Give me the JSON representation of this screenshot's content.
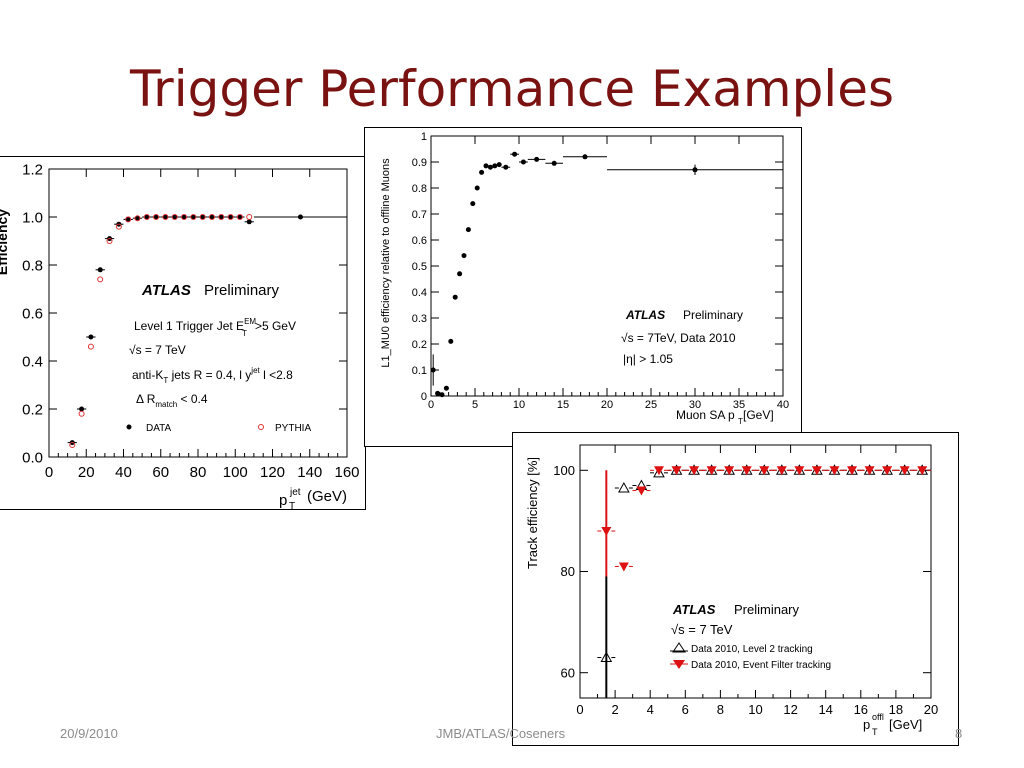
{
  "slide": {
    "title": "Trigger Performance Examples",
    "footer_date": "20/9/2010",
    "footer_center": "JMB/ATLAS/Coseners",
    "footer_page": "8",
    "title_color": "#7a1212"
  },
  "chart_data": [
    {
      "type": "scatter",
      "xlim": [
        0,
        160
      ],
      "ylim": [
        0,
        1.2
      ],
      "xticks": [
        "0",
        "20",
        "40",
        "60",
        "80",
        "100",
        "120",
        "140",
        "160"
      ],
      "yticks": [
        "0.0",
        "0.2",
        "0.4",
        "0.6",
        "0.8",
        "1.0",
        "1.2"
      ],
      "ylabel": "Efficiency",
      "xlabel_main": "p",
      "xlabel_sup": "jet",
      "xlabel_sub": "T",
      "xlabel_unit": "(GeV)",
      "atlas": "ATLAS",
      "preliminary": "Preliminary",
      "notes": [
        "Level 1 Trigger Jet E",
        "EM",
        "T",
        ">5 GeV",
        "√s = 7 TeV",
        "anti-K",
        "T",
        " jets R = 0.4, l y",
        "jet",
        " l <2.8",
        "Δ R",
        "match",
        " < 0.4"
      ],
      "series": [
        {
          "name": "DATA",
          "color": "#000000",
          "marker": "filled-circle",
          "x": [
            12.5,
            17.5,
            22.5,
            27.5,
            32.5,
            37.5,
            42.5,
            47.5,
            52.5,
            57.5,
            62.5,
            67.5,
            72.5,
            77.5,
            82.5,
            87.5,
            92.5,
            97.5,
            102.5,
            107.5,
            135
          ],
          "y": [
            0.06,
            0.2,
            0.5,
            0.78,
            0.91,
            0.97,
            0.99,
            0.995,
            1.0,
            1.0,
            1.0,
            1.0,
            1.0,
            1.0,
            1.0,
            1.0,
            1.0,
            1.0,
            1.0,
            0.98,
            1.0
          ],
          "xerr": [
            2.5,
            2.5,
            2.5,
            2.5,
            2.5,
            2.5,
            2.5,
            2.5,
            2.5,
            2.5,
            2.5,
            2.5,
            2.5,
            2.5,
            2.5,
            2.5,
            2.5,
            2.5,
            2.5,
            2.5,
            25
          ]
        },
        {
          "name": "PYTHIA",
          "color": "#e03030",
          "marker": "open-circle",
          "x": [
            12.5,
            17.5,
            22.5,
            27.5,
            32.5,
            37.5,
            42.5,
            47.5,
            52.5,
            57.5,
            62.5,
            67.5,
            72.5,
            77.5,
            82.5,
            87.5,
            92.5,
            97.5,
            102.5,
            107.5
          ],
          "y": [
            0.05,
            0.18,
            0.46,
            0.74,
            0.9,
            0.96,
            0.99,
            0.995,
            1.0,
            1.0,
            1.0,
            1.0,
            1.0,
            1.0,
            1.0,
            1.0,
            1.0,
            1.0,
            1.0,
            1.0
          ]
        }
      ]
    },
    {
      "type": "scatter",
      "xlim": [
        0,
        40
      ],
      "ylim": [
        0,
        1
      ],
      "xticks": [
        "0",
        "5",
        "10",
        "15",
        "20",
        "25",
        "30",
        "35",
        "40"
      ],
      "yticks": [
        "0",
        "0.1",
        "0.2",
        "0.3",
        "0.4",
        "0.5",
        "0.6",
        "0.7",
        "0.8",
        "0.9",
        "1"
      ],
      "ylabel": "L1_MU0 efficiency relative to offline Muons",
      "xlabel_main": "Muon SA p",
      "xlabel_sub": "T",
      "xlabel_unit": " [GeV]",
      "atlas": "ATLAS",
      "preliminary": "Preliminary",
      "notes": [
        "√s = 7TeV, Data 2010",
        "|η| > 1.05"
      ],
      "series": [
        {
          "name": "",
          "color": "#000000",
          "marker": "filled-circle",
          "x": [
            0.25,
            0.75,
            1.25,
            1.75,
            2.25,
            2.75,
            3.25,
            3.75,
            4.25,
            4.75,
            5.25,
            5.75,
            6.25,
            6.75,
            7.25,
            7.75,
            8.5,
            9.5,
            10.5,
            12,
            14,
            17.5,
            30
          ],
          "y": [
            0.1,
            0.01,
            0.005,
            0.03,
            0.21,
            0.38,
            0.47,
            0.54,
            0.64,
            0.74,
            0.8,
            0.86,
            0.885,
            0.88,
            0.885,
            0.89,
            0.88,
            0.93,
            0.9,
            0.91,
            0.895,
            0.92,
            0.87
          ],
          "xerr": [
            0.25,
            0.25,
            0.25,
            0.25,
            0.25,
            0.25,
            0.25,
            0.25,
            0.25,
            0.25,
            0.25,
            0.25,
            0.25,
            0.25,
            0.25,
            0.25,
            0.5,
            0.5,
            0.5,
            1,
            1,
            2.5,
            10
          ]
        }
      ]
    },
    {
      "type": "scatter",
      "xlim": [
        0,
        20
      ],
      "ylim": [
        55,
        105
      ],
      "xticks": [
        "0",
        "2",
        "4",
        "6",
        "8",
        "10",
        "12",
        "14",
        "16",
        "18",
        "20"
      ],
      "yticks": [
        "60",
        "80",
        "100"
      ],
      "ylabel": "Track efficiency [%]",
      "xlabel_main": "p",
      "xlabel_sup": "offl",
      "xlabel_sub": "T",
      "xlabel_unit": " [GeV]",
      "atlas": "ATLAS",
      "preliminary": "Preliminary",
      "notes": [
        "√s = 7 TeV"
      ],
      "series": [
        {
          "name": "Data 2010, Level 2 tracking",
          "color": "#000000",
          "marker": "open-triangle-up",
          "x": [
            1.5,
            2.5,
            3.5,
            4.5,
            5.5,
            6.5,
            7.5,
            8.5,
            9.5,
            10.5,
            11.5,
            12.5,
            13.5,
            14.5,
            15.5,
            16.5,
            17.5,
            18.5,
            19.5
          ],
          "y": [
            63,
            96.5,
            97,
            99.5,
            100,
            100,
            100,
            100,
            100,
            100,
            100,
            100,
            100,
            100,
            100,
            100,
            100,
            100,
            100
          ]
        },
        {
          "name": "Data 2010, Event Filter tracking",
          "color": "#dd1111",
          "marker": "filled-triangle-down",
          "x": [
            1.5,
            2.5,
            3.5,
            4.5,
            5.5,
            6.5,
            7.5,
            8.5,
            9.5,
            10.5,
            11.5,
            12.5,
            13.5,
            14.5,
            15.5,
            16.5,
            17.5,
            18.5,
            19.5
          ],
          "y": [
            88,
            81,
            96,
            100,
            100,
            100,
            100,
            100,
            100,
            100,
            100,
            100,
            100,
            100,
            100,
            100,
            100,
            100,
            100
          ]
        }
      ]
    }
  ]
}
